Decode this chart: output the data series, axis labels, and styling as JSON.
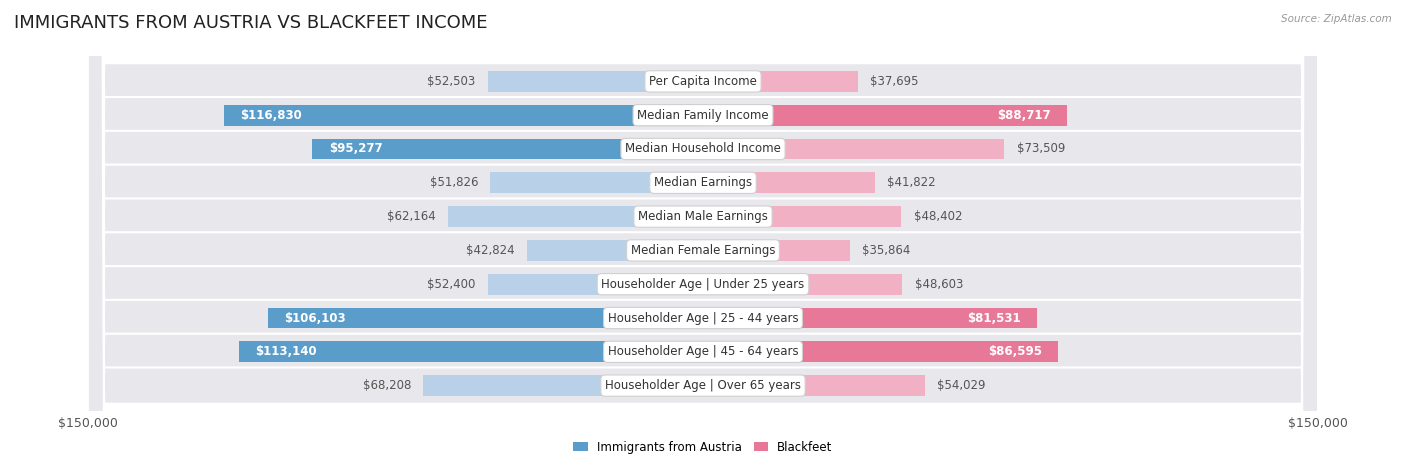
{
  "title": "IMMIGRANTS FROM AUSTRIA VS BLACKFEET INCOME",
  "source": "Source: ZipAtlas.com",
  "categories": [
    "Per Capita Income",
    "Median Family Income",
    "Median Household Income",
    "Median Earnings",
    "Median Male Earnings",
    "Median Female Earnings",
    "Householder Age | Under 25 years",
    "Householder Age | 25 - 44 years",
    "Householder Age | 45 - 64 years",
    "Householder Age | Over 65 years"
  ],
  "austria_values": [
    52503,
    116830,
    95277,
    51826,
    62164,
    42824,
    52400,
    106103,
    113140,
    68208
  ],
  "blackfeet_values": [
    37695,
    88717,
    73509,
    41822,
    48402,
    35864,
    48603,
    81531,
    86595,
    54029
  ],
  "austria_color_light": "#b8d0e8",
  "austria_color_dark": "#5b9dca",
  "blackfeet_color_light": "#f2b0c4",
  "blackfeet_color_dark": "#e87898",
  "austria_text_threshold": 80000,
  "blackfeet_text_threshold": 80000,
  "max_value": 150000,
  "xlabel_left": "$150,000",
  "xlabel_right": "$150,000",
  "legend_austria": "Immigrants from Austria",
  "legend_blackfeet": "Blackfeet",
  "background_color": "#ffffff",
  "row_bg_color": "#e8e8ec",
  "bar_height": 0.62,
  "title_fontsize": 13,
  "label_fontsize": 8.5,
  "tick_fontsize": 9
}
